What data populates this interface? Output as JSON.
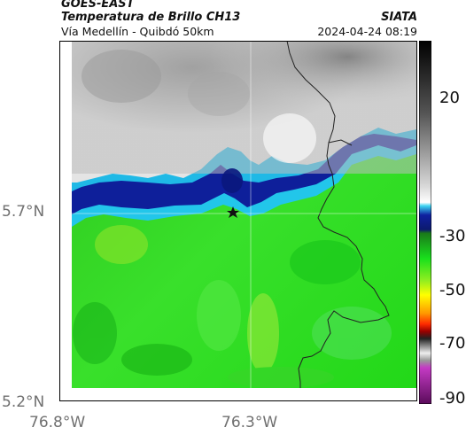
{
  "header": {
    "satellite": "GOES-EAST",
    "product": "Temperatura de Brillo CH13",
    "region": "Vía Medellín - Quibdó 50km",
    "source": "SIATA",
    "datetime": "2024-04-24 08:19"
  },
  "axes": {
    "lat_ticks": [
      "5.7°N",
      "5.2°N"
    ],
    "lon_ticks": [
      "76.8°W",
      "76.3°W"
    ]
  },
  "colorbar": {
    "ticks": [
      "20",
      "-30",
      "-50",
      "-70",
      "-90"
    ]
  },
  "colors": {
    "cold_cloud": "#f0f0f0",
    "cyan": "#22c6ea",
    "dark_blue": "#0a1a8c",
    "green": "#27e31a",
    "border": "#222222"
  },
  "marker_icon": "star-icon"
}
